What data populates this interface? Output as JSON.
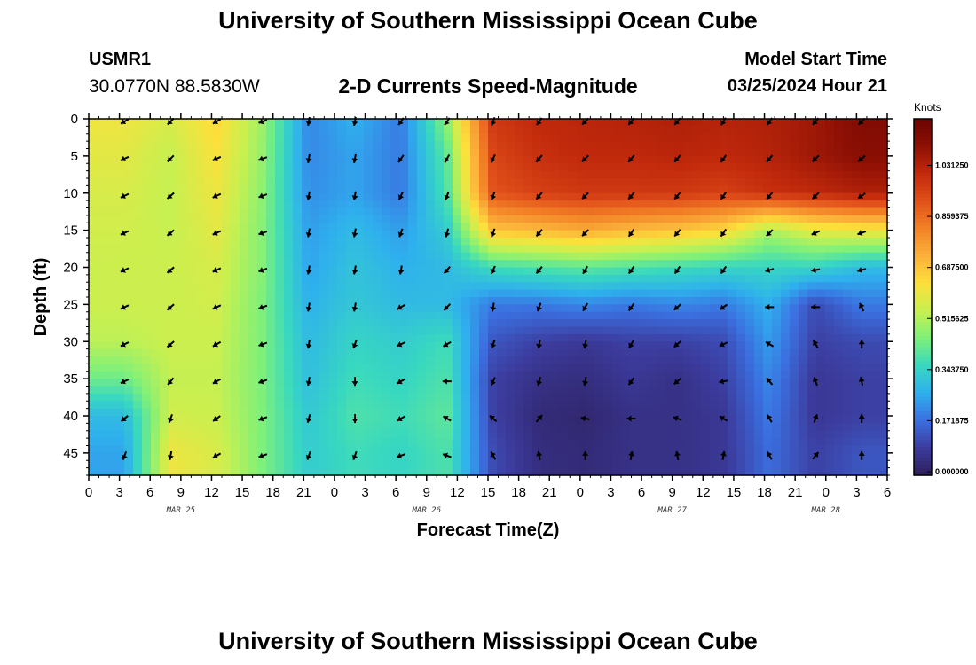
{
  "header": {
    "title": "University of Southern Mississippi Ocean Cube",
    "station_id": "USMR1",
    "coords": "30.0770N  88.5830W",
    "chart_title": "2-D Currents Speed-Magnitude",
    "model_label": "Model Start Time",
    "model_time": "03/25/2024 Hour 21"
  },
  "footer": {
    "title": "University of Southern Mississippi Ocean Cube"
  },
  "chart_data": {
    "type": "heatmap",
    "title": "2-D Currents Speed-Magnitude",
    "xlabel": "Forecast Time(Z)",
    "ylabel": "Depth (ft)",
    "x_tick_labels": [
      "0",
      "3",
      "6",
      "9",
      "12",
      "15",
      "18",
      "21",
      "0",
      "3",
      "6",
      "9",
      "12",
      "15",
      "18",
      "21",
      "0",
      "3",
      "6",
      "9",
      "12",
      "15",
      "18",
      "21",
      "0",
      "3",
      "6"
    ],
    "x_date_labels": [
      {
        "label": "MAR 25",
        "hour": 9
      },
      {
        "label": "MAR 26",
        "hour": 33
      },
      {
        "label": "MAR 27",
        "hour": 57
      },
      {
        "label": "MAR 28",
        "hour": 72
      }
    ],
    "x_range_hours": [
      0,
      78
    ],
    "y_ticks": [
      0,
      5,
      10,
      15,
      20,
      25,
      30,
      35,
      40,
      45
    ],
    "y_range_ft": [
      0,
      48
    ],
    "colorbar": {
      "unit": "Knots",
      "ticks": [
        "0.000000",
        "0.171875",
        "0.343750",
        "0.515625",
        "0.687500",
        "0.859375",
        "1.031250"
      ],
      "range": [
        0.0,
        1.2
      ],
      "colors": [
        "#2d1e5a",
        "#3c3c9e",
        "#3b6fe0",
        "#2fb0ee",
        "#38d8c0",
        "#7ef07a",
        "#c8f050",
        "#fde03a",
        "#fbb13a",
        "#f28226",
        "#e1501a",
        "#c22a0c",
        "#8e1004",
        "#6a0402"
      ]
    },
    "times_hours": [
      3.5,
      8,
      12.5,
      17,
      21.5,
      26,
      30.5,
      35,
      39.5,
      44,
      48.5,
      53,
      57.5,
      62,
      66.5,
      71,
      75.5
    ],
    "depths_ft": [
      0,
      5,
      10,
      15,
      20,
      25,
      30,
      35,
      40,
      45
    ],
    "speed_knots": [
      [
        0.62,
        0.58,
        0.66,
        0.5,
        0.22,
        0.28,
        0.2,
        0.48,
        0.98,
        1.02,
        1.03,
        1.04,
        1.05,
        1.04,
        1.05,
        1.08,
        1.14
      ],
      [
        0.6,
        0.55,
        0.64,
        0.49,
        0.22,
        0.26,
        0.2,
        0.42,
        0.95,
        1.0,
        1.02,
        1.02,
        1.03,
        1.02,
        1.04,
        1.08,
        1.12
      ],
      [
        0.58,
        0.55,
        0.62,
        0.48,
        0.23,
        0.26,
        0.2,
        0.4,
        0.92,
        0.96,
        0.98,
        0.98,
        0.98,
        0.96,
        1.0,
        1.02,
        1.05
      ],
      [
        0.57,
        0.55,
        0.6,
        0.47,
        0.25,
        0.3,
        0.25,
        0.34,
        0.7,
        0.72,
        0.75,
        0.72,
        0.7,
        0.66,
        0.52,
        0.6,
        0.62
      ],
      [
        0.56,
        0.56,
        0.58,
        0.47,
        0.26,
        0.32,
        0.28,
        0.3,
        0.38,
        0.4,
        0.42,
        0.4,
        0.38,
        0.36,
        0.36,
        0.36,
        0.3
      ],
      [
        0.56,
        0.56,
        0.57,
        0.46,
        0.28,
        0.33,
        0.3,
        0.3,
        0.2,
        0.2,
        0.22,
        0.2,
        0.22,
        0.2,
        0.28,
        0.12,
        0.2
      ],
      [
        0.54,
        0.56,
        0.56,
        0.46,
        0.3,
        0.36,
        0.34,
        0.38,
        0.14,
        0.1,
        0.08,
        0.1,
        0.1,
        0.12,
        0.25,
        0.1,
        0.12
      ],
      [
        0.44,
        0.55,
        0.55,
        0.46,
        0.31,
        0.38,
        0.36,
        0.4,
        0.1,
        0.06,
        0.05,
        0.08,
        0.06,
        0.1,
        0.22,
        0.08,
        0.1
      ],
      [
        0.3,
        0.57,
        0.56,
        0.46,
        0.33,
        0.4,
        0.38,
        0.42,
        0.1,
        0.04,
        0.03,
        0.06,
        0.06,
        0.08,
        0.2,
        0.08,
        0.1
      ],
      [
        0.26,
        0.62,
        0.58,
        0.46,
        0.34,
        0.38,
        0.36,
        0.4,
        0.12,
        0.05,
        0.04,
        0.06,
        0.06,
        0.08,
        0.18,
        0.1,
        0.14
      ]
    ],
    "direction_deg": [
      [
        240,
        225,
        240,
        250,
        190,
        190,
        215,
        215,
        200,
        215,
        225,
        220,
        220,
        210,
        215,
        220,
        225
      ],
      [
        245,
        225,
        245,
        250,
        190,
        190,
        215,
        210,
        205,
        220,
        225,
        220,
        220,
        215,
        220,
        225,
        230
      ],
      [
        245,
        230,
        245,
        250,
        190,
        190,
        205,
        200,
        200,
        220,
        225,
        220,
        220,
        215,
        220,
        225,
        235
      ],
      [
        245,
        230,
        245,
        250,
        190,
        190,
        200,
        195,
        200,
        220,
        225,
        215,
        220,
        215,
        225,
        245,
        250
      ],
      [
        245,
        230,
        245,
        250,
        190,
        190,
        190,
        220,
        205,
        220,
        210,
        215,
        215,
        215,
        255,
        260,
        255
      ],
      [
        245,
        230,
        245,
        250,
        190,
        190,
        240,
        225,
        190,
        200,
        210,
        215,
        230,
        235,
        270,
        270,
        335
      ],
      [
        245,
        230,
        240,
        250,
        190,
        200,
        245,
        240,
        200,
        190,
        190,
        210,
        230,
        245,
        300,
        330,
        0
      ],
      [
        245,
        220,
        240,
        250,
        190,
        180,
        240,
        270,
        205,
        195,
        190,
        215,
        230,
        260,
        320,
        340,
        350
      ],
      [
        230,
        200,
        235,
        250,
        195,
        180,
        240,
        300,
        310,
        40,
        280,
        270,
        290,
        300,
        330,
        20,
        0
      ],
      [
        200,
        190,
        240,
        250,
        200,
        200,
        250,
        290,
        330,
        350,
        0,
        10,
        350,
        10,
        330,
        40,
        0
      ]
    ]
  }
}
